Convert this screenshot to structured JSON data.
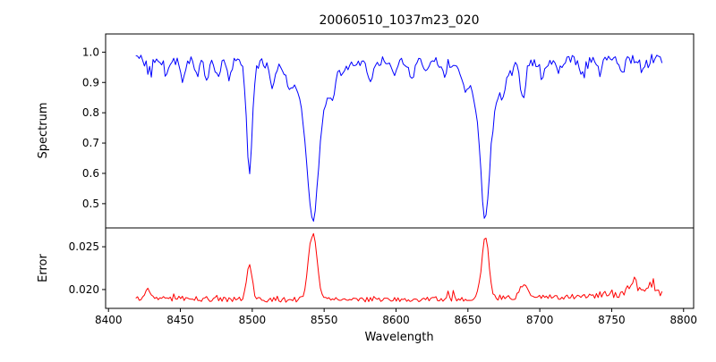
{
  "title": "20060510_1037m23_020",
  "seed": 20060510,
  "chart_data": [
    {
      "type": "line",
      "name": "spectrum",
      "title": "20060510_1037m23_020",
      "xlabel": "Wavelength",
      "ylabel": "Spectrum",
      "color": "#0000ff",
      "grid": false,
      "legend": "none",
      "xlim": [
        8398,
        8807
      ],
      "ylim": [
        0.42,
        1.06
      ],
      "x_range": [
        8419,
        8786
      ],
      "xticks": [
        8400,
        8450,
        8500,
        8550,
        8600,
        8650,
        8700,
        8750,
        8800
      ],
      "xtick_labels": [
        "8400",
        "8450",
        "8500",
        "8550",
        "8600",
        "8650",
        "8700",
        "8750",
        "8800"
      ],
      "yticks": [
        0.5,
        0.6,
        0.7,
        0.8,
        0.9,
        1.0
      ],
      "ytick_labels": [
        "0.5",
        "0.6",
        "0.7",
        "0.8",
        "0.9",
        "1.0"
      ],
      "continuum": 0.978,
      "noise_amplitude": 0.016,
      "absorption_lines": [
        {
          "center": 8498.0,
          "depth": 0.36,
          "width": 2.0,
          "profile": "gaussian"
        },
        {
          "center": 8542.1,
          "depth": 0.535,
          "width": 5.5,
          "profile": "lorentzian"
        },
        {
          "center": 8662.1,
          "depth": 0.535,
          "width": 4.5,
          "profile": "lorentzian"
        },
        {
          "center": 8688.6,
          "depth": 0.12,
          "width": 2.0,
          "profile": "gaussian"
        },
        {
          "center": 8428.0,
          "depth": 0.04,
          "width": 1.6,
          "profile": "gaussian"
        },
        {
          "center": 8440.0,
          "depth": 0.05,
          "width": 1.6,
          "profile": "gaussian"
        },
        {
          "center": 8451.5,
          "depth": 0.075,
          "width": 1.8,
          "profile": "gaussian"
        },
        {
          "center": 8462.0,
          "depth": 0.045,
          "width": 1.6,
          "profile": "gaussian"
        },
        {
          "center": 8468.5,
          "depth": 0.06,
          "width": 1.6,
          "profile": "gaussian"
        },
        {
          "center": 8476.0,
          "depth": 0.05,
          "width": 1.6,
          "profile": "gaussian"
        },
        {
          "center": 8484.0,
          "depth": 0.055,
          "width": 1.6,
          "profile": "gaussian"
        },
        {
          "center": 8514.2,
          "depth": 0.065,
          "width": 1.8,
          "profile": "gaussian"
        },
        {
          "center": 8526.0,
          "depth": 0.05,
          "width": 1.6,
          "profile": "gaussian"
        },
        {
          "center": 8556.0,
          "depth": 0.05,
          "width": 1.6,
          "profile": "gaussian"
        },
        {
          "center": 8582.0,
          "depth": 0.06,
          "width": 1.8,
          "profile": "gaussian"
        },
        {
          "center": 8598.0,
          "depth": 0.05,
          "width": 1.6,
          "profile": "gaussian"
        },
        {
          "center": 8611.0,
          "depth": 0.06,
          "width": 1.8,
          "profile": "gaussian"
        },
        {
          "center": 8621.0,
          "depth": 0.045,
          "width": 1.6,
          "profile": "gaussian"
        },
        {
          "center": 8634.0,
          "depth": 0.04,
          "width": 1.6,
          "profile": "gaussian"
        },
        {
          "center": 8648.0,
          "depth": 0.05,
          "width": 1.6,
          "profile": "gaussian"
        },
        {
          "center": 8674.8,
          "depth": 0.065,
          "width": 1.8,
          "profile": "gaussian"
        },
        {
          "center": 8702.0,
          "depth": 0.055,
          "width": 1.8,
          "profile": "gaussian"
        },
        {
          "center": 8713.0,
          "depth": 0.045,
          "width": 1.6,
          "profile": "gaussian"
        },
        {
          "center": 8730.0,
          "depth": 0.055,
          "width": 1.8,
          "profile": "gaussian"
        },
        {
          "center": 8742.0,
          "depth": 0.045,
          "width": 1.6,
          "profile": "gaussian"
        },
        {
          "center": 8757.0,
          "depth": 0.055,
          "width": 1.8,
          "profile": "gaussian"
        },
        {
          "center": 8772.0,
          "depth": 0.045,
          "width": 1.6,
          "profile": "gaussian"
        }
      ],
      "key_points": [
        [
          8420,
          0.97
        ],
        [
          8498,
          0.61
        ],
        [
          8542,
          0.44
        ],
        [
          8662,
          0.44
        ],
        [
          8689,
          0.85
        ],
        [
          8786,
          0.98
        ]
      ]
    },
    {
      "type": "line",
      "name": "error",
      "xlabel": "Wavelength",
      "ylabel": "Error",
      "color": "#ff0000",
      "grid": false,
      "legend": "none",
      "xlim": [
        8398,
        8807
      ],
      "ylim": [
        0.0178,
        0.0272
      ],
      "x_range": [
        8419,
        8786
      ],
      "yticks": [
        0.02,
        0.025
      ],
      "ytick_labels": [
        "0.020",
        "0.025"
      ],
      "baseline": 0.0188,
      "trend": {
        "center": 8550,
        "scale": 200,
        "coef": 0.0005
      },
      "noise_amplitude": 0.0003,
      "noise_boost": {
        "from": 8740,
        "factor": 1.8
      },
      "peaks": [
        {
          "center": 8428.0,
          "height": 0.001,
          "width": 2.0
        },
        {
          "center": 8498.0,
          "height": 0.0042,
          "width": 2.0
        },
        {
          "center": 8542.1,
          "height": 0.0077,
          "width": 3.0
        },
        {
          "center": 8662.1,
          "height": 0.0072,
          "width": 2.5
        },
        {
          "center": 8688.6,
          "height": 0.0015,
          "width": 2.5
        },
        {
          "center": 8765.0,
          "height": 0.0016,
          "width": 3.0
        },
        {
          "center": 8777.0,
          "height": 0.0013,
          "width": 2.0
        }
      ],
      "key_points": [
        [
          8420,
          0.019
        ],
        [
          8498,
          0.023
        ],
        [
          8542,
          0.0265
        ],
        [
          8662,
          0.026
        ],
        [
          8700,
          0.0195
        ],
        [
          8786,
          0.0195
        ]
      ]
    }
  ]
}
